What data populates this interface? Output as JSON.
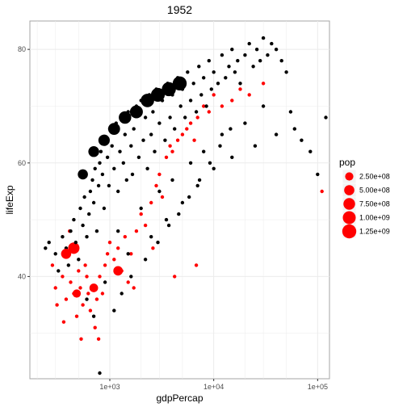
{
  "chart_data": {
    "type": "scatter",
    "title": "1952",
    "xlabel": "gdpPercap",
    "ylabel": "lifeExp",
    "x_scale": "log10",
    "xlim": [
      170,
      130000
    ],
    "ylim": [
      22,
      85
    ],
    "x_ticks": [
      {
        "value": 1000,
        "label": "1e+03"
      },
      {
        "value": 10000,
        "label": "1e+04"
      },
      {
        "value": 100000,
        "label": "1e+05"
      }
    ],
    "y_ticks": [
      {
        "value": 40,
        "label": "40"
      },
      {
        "value": 60,
        "label": "60"
      },
      {
        "value": 80,
        "label": "80"
      }
    ],
    "grid": true,
    "colors": {
      "default_point": "#000000",
      "highlight_point": "#ff0000",
      "grid": "#ebebeb",
      "border": "#a6a6a6"
    },
    "legend": {
      "title": "pop",
      "placement": "right",
      "entries": [
        {
          "label": "2.50e+08",
          "size_value": 250000000
        },
        {
          "label": "5.00e+08",
          "size_value": 500000000
        },
        {
          "label": "7.50e+08",
          "size_value": 750000000
        },
        {
          "label": "1.00e+09",
          "size_value": 1000000000
        },
        {
          "label": "1.25e+09",
          "size_value": 1250000000
        }
      ]
    },
    "series": [
      {
        "color": "#ff0000",
        "points": [
          [
            280,
            42
          ],
          [
            300,
            38
          ],
          [
            310,
            35
          ],
          [
            350,
            40
          ],
          [
            380,
            36
          ],
          [
            400,
            44
          ],
          [
            420,
            39
          ],
          [
            450,
            37
          ],
          [
            480,
            33
          ],
          [
            500,
            41
          ],
          [
            520,
            38
          ],
          [
            550,
            35
          ],
          [
            580,
            42
          ],
          [
            600,
            40
          ],
          [
            620,
            37
          ],
          [
            650,
            34
          ],
          [
            700,
            38
          ],
          [
            720,
            31
          ],
          [
            750,
            36
          ],
          [
            780,
            29
          ],
          [
            800,
            40
          ],
          [
            850,
            37
          ],
          [
            900,
            42
          ],
          [
            950,
            44
          ],
          [
            1000,
            46
          ],
          [
            1100,
            43
          ],
          [
            1200,
            45
          ],
          [
            1300,
            41
          ],
          [
            1400,
            47
          ],
          [
            1500,
            39
          ],
          [
            1600,
            44
          ],
          [
            1800,
            48
          ],
          [
            2000,
            51
          ],
          [
            2200,
            49
          ],
          [
            2500,
            53
          ],
          [
            2800,
            56
          ],
          [
            3000,
            58
          ],
          [
            3200,
            54
          ],
          [
            3500,
            61
          ],
          [
            3800,
            63
          ],
          [
            4000,
            62
          ],
          [
            4500,
            64
          ],
          [
            5000,
            65
          ],
          [
            5500,
            66
          ],
          [
            6000,
            67
          ],
          [
            6500,
            64
          ],
          [
            7000,
            68
          ],
          [
            8000,
            70
          ],
          [
            9000,
            69
          ],
          [
            10000,
            72
          ],
          [
            12000,
            70
          ],
          [
            15000,
            71
          ],
          [
            18000,
            73
          ],
          [
            22000,
            72
          ],
          [
            1700,
            38
          ],
          [
            2600,
            45
          ],
          [
            4200,
            40
          ],
          [
            6800,
            42
          ],
          [
            450,
            45
          ],
          [
            360,
            32
          ],
          [
            530,
            29
          ],
          [
            410,
            48
          ],
          [
            30000,
            74
          ],
          [
            110000,
            55
          ]
        ],
        "sizes": [
          0,
          0,
          0,
          0,
          0,
          0,
          0,
          0,
          0,
          0,
          0,
          0,
          0,
          0,
          0,
          0,
          0,
          0,
          0,
          0,
          0,
          0,
          0,
          0,
          0,
          0,
          0,
          0,
          0,
          0,
          0,
          0,
          0,
          0,
          0,
          0,
          0,
          0,
          0,
          0,
          0,
          0,
          0,
          0,
          0,
          0,
          0,
          0,
          0,
          0,
          0,
          0,
          0,
          0,
          0,
          0,
          0,
          0,
          700000000,
          0,
          0,
          0,
          0,
          0
        ]
      },
      {
        "color": "#000000",
        "points": [
          [
            240,
            45
          ],
          [
            260,
            46
          ],
          [
            300,
            44
          ],
          [
            320,
            41
          ],
          [
            350,
            47
          ],
          [
            380,
            45
          ],
          [
            400,
            42
          ],
          [
            420,
            48
          ],
          [
            450,
            50
          ],
          [
            470,
            46
          ],
          [
            500,
            43
          ],
          [
            520,
            52
          ],
          [
            550,
            49
          ],
          [
            570,
            54
          ],
          [
            600,
            47
          ],
          [
            630,
            51
          ],
          [
            650,
            55
          ],
          [
            680,
            57
          ],
          [
            700,
            53
          ],
          [
            720,
            59
          ],
          [
            750,
            48
          ],
          [
            780,
            56
          ],
          [
            800,
            60
          ],
          [
            820,
            62
          ],
          [
            850,
            58
          ],
          [
            880,
            52
          ],
          [
            900,
            64
          ],
          [
            950,
            61
          ],
          [
            980,
            56
          ],
          [
            1000,
            66
          ],
          [
            1050,
            63
          ],
          [
            1100,
            59
          ],
          [
            1150,
            67
          ],
          [
            1200,
            55
          ],
          [
            1250,
            62
          ],
          [
            1300,
            68
          ],
          [
            1350,
            60
          ],
          [
            1400,
            65
          ],
          [
            1450,
            57
          ],
          [
            1500,
            69
          ],
          [
            1600,
            63
          ],
          [
            1650,
            58
          ],
          [
            1700,
            66
          ],
          [
            1800,
            70
          ],
          [
            1900,
            61
          ],
          [
            2000,
            71
          ],
          [
            2100,
            64
          ],
          [
            2200,
            68
          ],
          [
            2300,
            59
          ],
          [
            2400,
            72
          ],
          [
            2500,
            65
          ],
          [
            2600,
            69
          ],
          [
            2700,
            62
          ],
          [
            2800,
            73
          ],
          [
            3000,
            67
          ],
          [
            3200,
            71
          ],
          [
            3400,
            64
          ],
          [
            3600,
            74
          ],
          [
            3800,
            68
          ],
          [
            4000,
            72
          ],
          [
            4200,
            66
          ],
          [
            4500,
            75
          ],
          [
            4800,
            70
          ],
          [
            5000,
            73
          ],
          [
            5300,
            68
          ],
          [
            5600,
            76
          ],
          [
            6000,
            71
          ],
          [
            6400,
            74
          ],
          [
            6800,
            69
          ],
          [
            7200,
            77
          ],
          [
            7600,
            72
          ],
          [
            8000,
            75
          ],
          [
            8500,
            70
          ],
          [
            9000,
            78
          ],
          [
            9500,
            73
          ],
          [
            10000,
            76
          ],
          [
            11000,
            74
          ],
          [
            12000,
            79
          ],
          [
            13000,
            75
          ],
          [
            14000,
            77
          ],
          [
            15000,
            80
          ],
          [
            16000,
            76
          ],
          [
            17000,
            78
          ],
          [
            18000,
            74
          ],
          [
            20000,
            79
          ],
          [
            22000,
            81
          ],
          [
            24000,
            77
          ],
          [
            26000,
            80
          ],
          [
            28000,
            78
          ],
          [
            30000,
            82
          ],
          [
            33000,
            79
          ],
          [
            36000,
            81
          ],
          [
            40000,
            80
          ],
          [
            45000,
            78
          ],
          [
            50000,
            76
          ],
          [
            55000,
            69
          ],
          [
            60000,
            66
          ],
          [
            70000,
            64
          ],
          [
            85000,
            62
          ],
          [
            100000,
            58
          ],
          [
            120000,
            68
          ],
          [
            1200,
            48
          ],
          [
            1500,
            44
          ],
          [
            2000,
            52
          ],
          [
            2500,
            47
          ],
          [
            3000,
            55
          ],
          [
            3500,
            50
          ],
          [
            4000,
            57
          ],
          [
            5000,
            53
          ],
          [
            6000,
            60
          ],
          [
            7000,
            56
          ],
          [
            8000,
            62
          ],
          [
            10000,
            59
          ],
          [
            12000,
            65
          ],
          [
            15000,
            61
          ],
          [
            20000,
            67
          ],
          [
            25000,
            63
          ],
          [
            30000,
            70
          ],
          [
            40000,
            65
          ],
          [
            600,
            36
          ],
          [
            700,
            33
          ],
          [
            800,
            23
          ],
          [
            900,
            39
          ],
          [
            1100,
            34
          ],
          [
            1300,
            37
          ],
          [
            1600,
            40
          ],
          [
            2200,
            43
          ],
          [
            2900,
            46
          ],
          [
            3700,
            49
          ],
          [
            4600,
            51
          ],
          [
            5800,
            54
          ],
          [
            7300,
            57
          ],
          [
            9200,
            60
          ],
          [
            11500,
            63
          ],
          [
            14500,
            66
          ]
        ],
        "sizes": [
          0,
          0,
          0,
          0,
          0,
          0,
          0,
          0,
          0,
          0,
          0,
          0,
          0,
          0,
          0,
          0,
          0,
          0,
          0,
          0,
          0,
          0,
          0,
          0,
          0,
          0,
          0,
          0,
          0,
          0,
          0,
          0,
          0,
          0,
          0,
          0,
          0,
          0,
          0,
          0,
          0,
          0,
          0,
          0,
          0,
          0,
          0,
          0,
          0,
          0,
          0,
          0,
          0,
          0,
          0,
          0,
          0,
          0,
          0,
          0,
          0,
          0,
          0,
          0,
          0,
          0,
          0,
          0,
          0,
          0,
          0,
          0,
          0,
          0,
          0,
          0,
          0,
          0,
          0,
          0,
          0,
          0,
          0,
          0,
          0,
          0,
          0,
          0,
          0,
          0,
          0,
          0,
          0,
          0,
          0,
          0,
          0,
          0,
          0,
          0,
          0,
          0,
          0,
          0,
          0,
          0,
          0,
          0,
          0,
          0,
          0,
          0,
          0,
          0,
          0,
          0,
          0,
          0,
          0,
          0,
          0,
          0,
          0,
          0,
          0,
          0,
          0,
          0,
          0,
          0,
          0,
          0,
          0,
          0,
          0,
          0,
          0,
          0,
          0,
          0
        ]
      },
      {
        "color": "#000000",
        "points": [
          [
            550,
            58
          ],
          [
            700,
            62
          ],
          [
            880,
            64
          ],
          [
            1100,
            66
          ],
          [
            1400,
            68
          ],
          [
            1800,
            69
          ],
          [
            2300,
            71
          ],
          [
            2900,
            72
          ],
          [
            3700,
            73
          ],
          [
            4700,
            74
          ]
        ],
        "sizes": [
          500000000,
          600000000,
          700000000,
          800000000,
          900000000,
          1000000000,
          1100000000,
          1200000000,
          1250000000,
          1250000000
        ]
      },
      {
        "color": "#ff0000",
        "points": [
          [
            480,
            37
          ],
          [
            700,
            38
          ],
          [
            1200,
            41
          ],
          [
            380,
            44
          ]
        ],
        "sizes": [
          250000000,
          300000000,
          400000000,
          500000000
        ]
      }
    ]
  }
}
